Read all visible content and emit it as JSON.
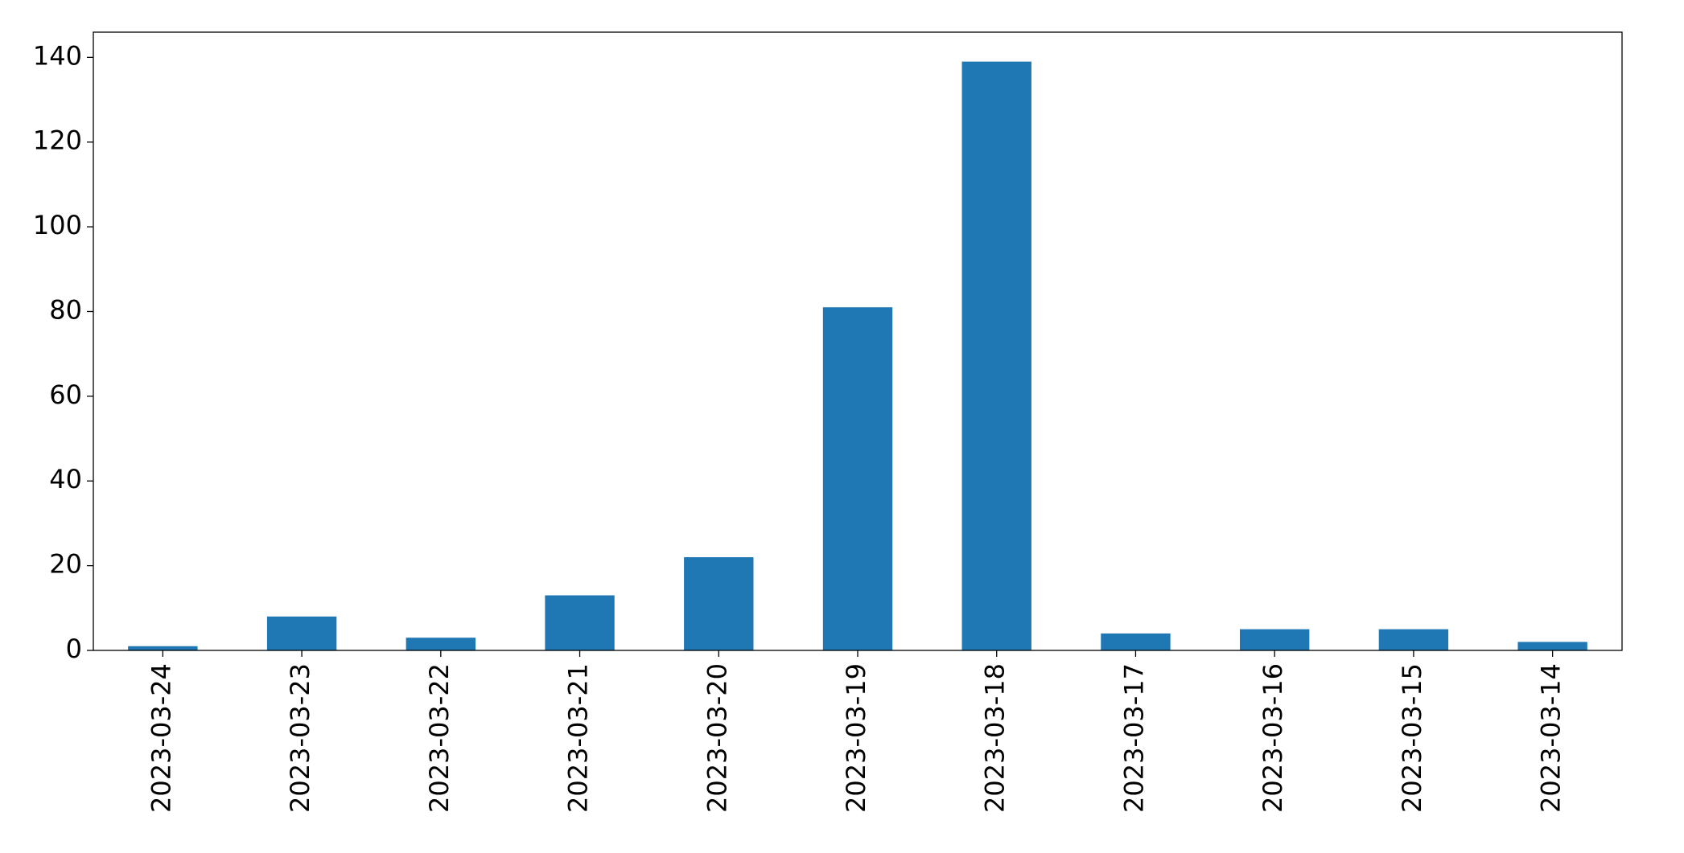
{
  "chart_data": {
    "type": "bar",
    "categories": [
      "2023-03-24",
      "2023-03-23",
      "2023-03-22",
      "2023-03-21",
      "2023-03-20",
      "2023-03-19",
      "2023-03-18",
      "2023-03-17",
      "2023-03-16",
      "2023-03-15",
      "2023-03-14"
    ],
    "values": [
      1,
      8,
      3,
      13,
      22,
      81,
      139,
      4,
      5,
      5,
      2
    ],
    "color": "#1f77b4",
    "ylim": [
      0,
      145.95
    ],
    "yticks": [
      0,
      20,
      40,
      60,
      80,
      100,
      120,
      140
    ],
    "grid": false
  }
}
